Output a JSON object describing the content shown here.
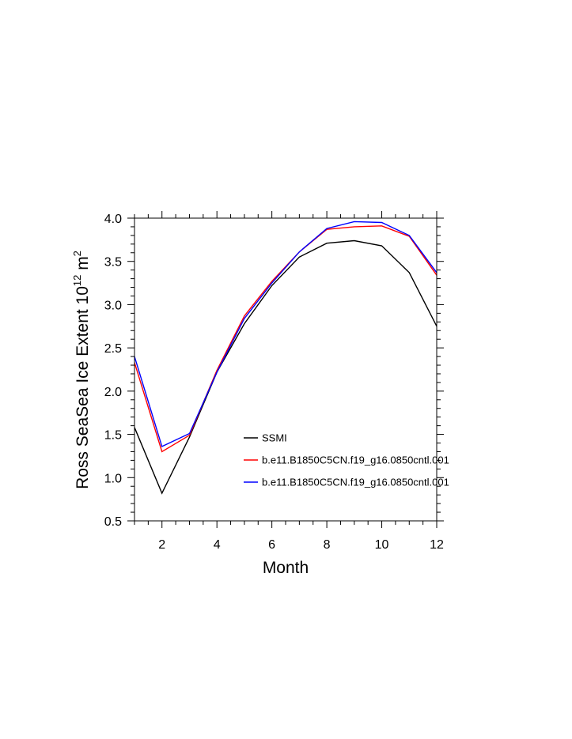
{
  "chart_data": {
    "type": "line",
    "xlabel": "Month",
    "ylabel": {
      "prefix": "Ross SeaSea Ice Extent 10",
      "exponent": "12",
      "unit": " m",
      "unit_exponent": "2"
    },
    "xlim": [
      1,
      12
    ],
    "ylim": [
      0.5,
      4.0
    ],
    "x_ticks": [
      2,
      4,
      6,
      8,
      10,
      12
    ],
    "x_tick_labels": [
      "2",
      "4",
      "6",
      "8",
      "10",
      "12"
    ],
    "y_ticks": [
      0.5,
      1.0,
      1.5,
      2.0,
      2.5,
      3.0,
      3.5,
      4.0
    ],
    "y_tick_labels": [
      "0.5",
      "1.0",
      "1.5",
      "2.0",
      "2.5",
      "3.0",
      "3.5",
      "4.0"
    ],
    "grid": false,
    "legend_position": "inside-lower-right",
    "x": [
      1,
      2,
      3,
      4,
      5,
      6,
      7,
      8,
      9,
      10,
      11,
      12
    ],
    "series": [
      {
        "name": "SSMI",
        "color": "#000000",
        "values": [
          1.58,
          0.82,
          1.47,
          2.22,
          2.78,
          3.22,
          3.55,
          3.71,
          3.74,
          3.68,
          3.37,
          2.75
        ]
      },
      {
        "name": "b.e11.B1850C5CN.f19_g16.0850cntl.001",
        "color": "#ff0000",
        "values": [
          2.33,
          1.3,
          1.49,
          2.24,
          2.87,
          3.27,
          3.61,
          3.87,
          3.9,
          3.91,
          3.79,
          3.34
        ]
      },
      {
        "name": "b.e11.B1850C5CN.f19_g16.0850cntl.001",
        "color": "#0000ff",
        "values": [
          2.4,
          1.36,
          1.51,
          2.22,
          2.84,
          3.25,
          3.61,
          3.88,
          3.96,
          3.95,
          3.8,
          3.37
        ]
      }
    ]
  }
}
